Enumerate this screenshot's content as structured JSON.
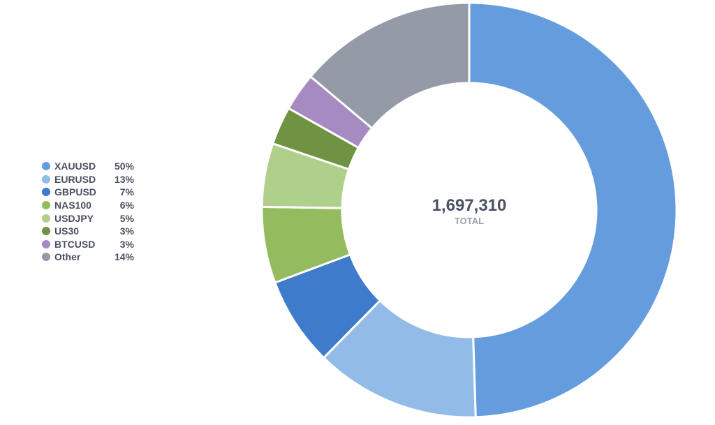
{
  "chart_data": {
    "type": "pie",
    "variant": "donut",
    "center": {
      "total": "1,697,310",
      "caption": "TOTAL"
    },
    "legend_position": "left",
    "slices": [
      {
        "label": "XAUUSD",
        "value": 50,
        "display": "50%",
        "color": "#659cdd"
      },
      {
        "label": "EURUSD",
        "value": 13,
        "display": "13%",
        "color": "#93bbe8"
      },
      {
        "label": "GBPUSD",
        "value": 7,
        "display": "7%",
        "color": "#3f7bcb"
      },
      {
        "label": "NAS100",
        "value": 6,
        "display": "6%",
        "color": "#94bc5f"
      },
      {
        "label": "USDJPY",
        "value": 5,
        "display": "5%",
        "color": "#aed08a"
      },
      {
        "label": "US30",
        "value": 3,
        "display": "3%",
        "color": "#6f9343"
      },
      {
        "label": "BTCUSD",
        "value": 3,
        "display": "3%",
        "color": "#a68bc3"
      },
      {
        "label": "Other",
        "value": 14,
        "display": "14%",
        "color": "#949aa6"
      }
    ]
  }
}
